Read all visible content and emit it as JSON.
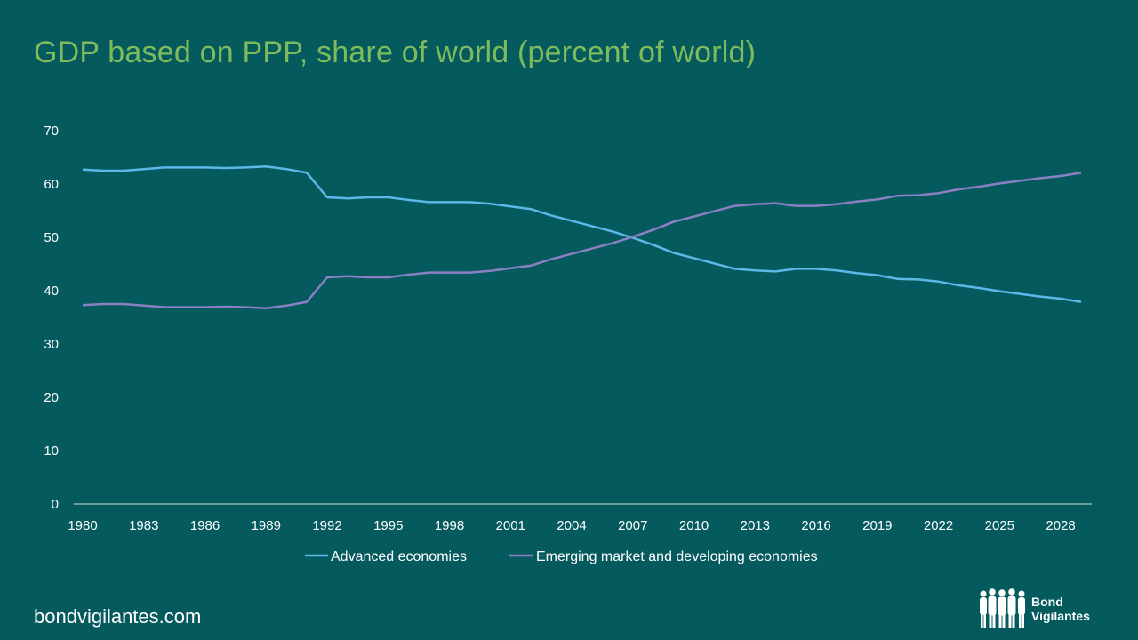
{
  "title": "GDP based on PPP, share of world (percent of world)",
  "footer": {
    "url": "bondvigilantes.com"
  },
  "brand": {
    "line1": "Bond",
    "line2": "Vigilantes"
  },
  "colors": {
    "background": "#055a5e",
    "title": "#7dbb5c",
    "advanced": "#5bb8e8",
    "emerging": "#8b80c4"
  },
  "chart_data": {
    "type": "line",
    "title": "GDP based on PPP, share of world (percent of world)",
    "xlabel": "",
    "ylabel": "",
    "ylim": [
      0,
      70
    ],
    "yticks": [
      "0",
      "10",
      "20",
      "30",
      "40",
      "50",
      "60",
      "70"
    ],
    "xticks": [
      "1980",
      "1983",
      "1986",
      "1989",
      "1992",
      "1995",
      "1998",
      "2001",
      "2004",
      "2007",
      "2010",
      "2013",
      "2016",
      "2019",
      "2022",
      "2025",
      "2028"
    ],
    "grid": false,
    "legend": "bottom",
    "x": [
      1980,
      1981,
      1982,
      1983,
      1984,
      1985,
      1986,
      1987,
      1988,
      1989,
      1990,
      1991,
      1992,
      1993,
      1994,
      1995,
      1996,
      1997,
      1998,
      1999,
      2000,
      2001,
      2002,
      2003,
      2004,
      2005,
      2006,
      2007,
      2008,
      2009,
      2010,
      2011,
      2012,
      2013,
      2014,
      2015,
      2016,
      2017,
      2018,
      2019,
      2020,
      2021,
      2022,
      2023,
      2024,
      2025,
      2026,
      2027,
      2028,
      2029
    ],
    "series": [
      {
        "name": "Advanced economies",
        "values": [
          62.7,
          62.5,
          62.5,
          62.8,
          63.1,
          63.1,
          63.1,
          63.0,
          63.1,
          63.3,
          62.8,
          62.1,
          57.5,
          57.3,
          57.5,
          57.5,
          57.0,
          56.6,
          56.6,
          56.6,
          56.3,
          55.8,
          55.3,
          54.1,
          53.1,
          52.1,
          51.1,
          49.9,
          48.6,
          47.1,
          46.1,
          45.1,
          44.1,
          43.8,
          43.6,
          44.1,
          44.1,
          43.8,
          43.3,
          42.9,
          42.2,
          42.1,
          41.7,
          41.0,
          40.5,
          39.9,
          39.4,
          38.9,
          38.5,
          37.9
        ]
      },
      {
        "name": "Emerging market and developing economies",
        "values": [
          37.3,
          37.5,
          37.5,
          37.2,
          36.9,
          36.9,
          36.9,
          37.0,
          36.9,
          36.7,
          37.2,
          37.9,
          42.5,
          42.7,
          42.5,
          42.5,
          43.0,
          43.4,
          43.4,
          43.4,
          43.7,
          44.2,
          44.7,
          45.9,
          46.9,
          47.9,
          48.9,
          50.1,
          51.4,
          52.9,
          53.9,
          54.9,
          55.9,
          56.2,
          56.4,
          55.9,
          55.9,
          56.2,
          56.7,
          57.1,
          57.8,
          57.9,
          58.3,
          59.0,
          59.5,
          60.1,
          60.6,
          61.1,
          61.5,
          62.1
        ]
      }
    ]
  }
}
